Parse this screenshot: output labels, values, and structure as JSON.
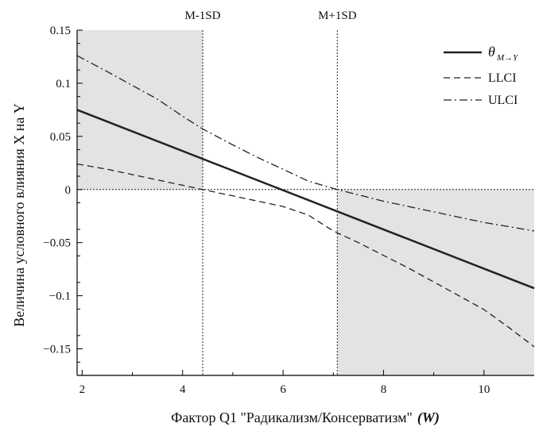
{
  "chart_data": {
    "type": "line",
    "xlabel": "Фактор Q1 \"Радикализм/Консерватизм\"",
    "xlabel_var": "(W)",
    "ylabel": "Величина условного влияния X на Y",
    "xlim": [
      1.9,
      11
    ],
    "ylim": [
      -0.175,
      0.15
    ],
    "xticks": [
      2,
      4,
      6,
      8,
      10
    ],
    "xtick_labels": [
      "2",
      "4",
      "6",
      "8",
      "10"
    ],
    "yticks": [
      0.15,
      0.1,
      0.05,
      0,
      -0.05,
      -0.1,
      -0.15
    ],
    "ytick_labels": [
      "0.15",
      "0.1",
      "0.05",
      "0",
      "−0.05",
      "−0.1",
      "−0.15"
    ],
    "grid": false,
    "legend_position": "top-right",
    "reference_lines": [
      {
        "x": 4.4,
        "label": "M-1SD"
      },
      {
        "x": 7.08,
        "label": "M+1SD"
      }
    ],
    "shaded_regions": [
      {
        "x_from": 1.9,
        "x_to": 4.4,
        "y_from": 0,
        "y_to": 0.15
      },
      {
        "x_from": 7.08,
        "x_to": 11,
        "y_from": -0.175,
        "y_to": 0
      }
    ],
    "series": [
      {
        "name": "θ",
        "name_subscript": "M→Y",
        "style": "solid",
        "x": [
          1.9,
          11
        ],
        "y": [
          0.075,
          -0.093
        ]
      },
      {
        "name": "LLCI",
        "style": "dashed",
        "x": [
          1.9,
          2.5,
          3,
          3.5,
          4,
          4.4,
          5,
          5.5,
          6,
          6.5,
          7,
          7.5,
          8,
          8.5,
          9,
          9.5,
          10,
          10.5,
          11
        ],
        "y": [
          0.024,
          0.019,
          0.014,
          0.009,
          0.004,
          0.0,
          -0.006,
          -0.011,
          -0.016,
          -0.024,
          -0.039,
          -0.05,
          -0.062,
          -0.074,
          -0.087,
          -0.1,
          -0.113,
          -0.13,
          -0.148
        ]
      },
      {
        "name": "ULCI",
        "style": "dash-dot",
        "x": [
          1.9,
          2.5,
          3,
          3.5,
          4,
          4.4,
          5,
          5.5,
          6,
          6.5,
          7,
          7.5,
          8,
          8.5,
          9,
          9.5,
          10,
          10.5,
          11
        ],
        "y": [
          0.126,
          0.111,
          0.098,
          0.085,
          0.069,
          0.057,
          0.042,
          0.03,
          0.019,
          0.008,
          0.001,
          -0.005,
          -0.011,
          -0.016,
          -0.021,
          -0.026,
          -0.031,
          -0.035,
          -0.039
        ]
      }
    ]
  }
}
